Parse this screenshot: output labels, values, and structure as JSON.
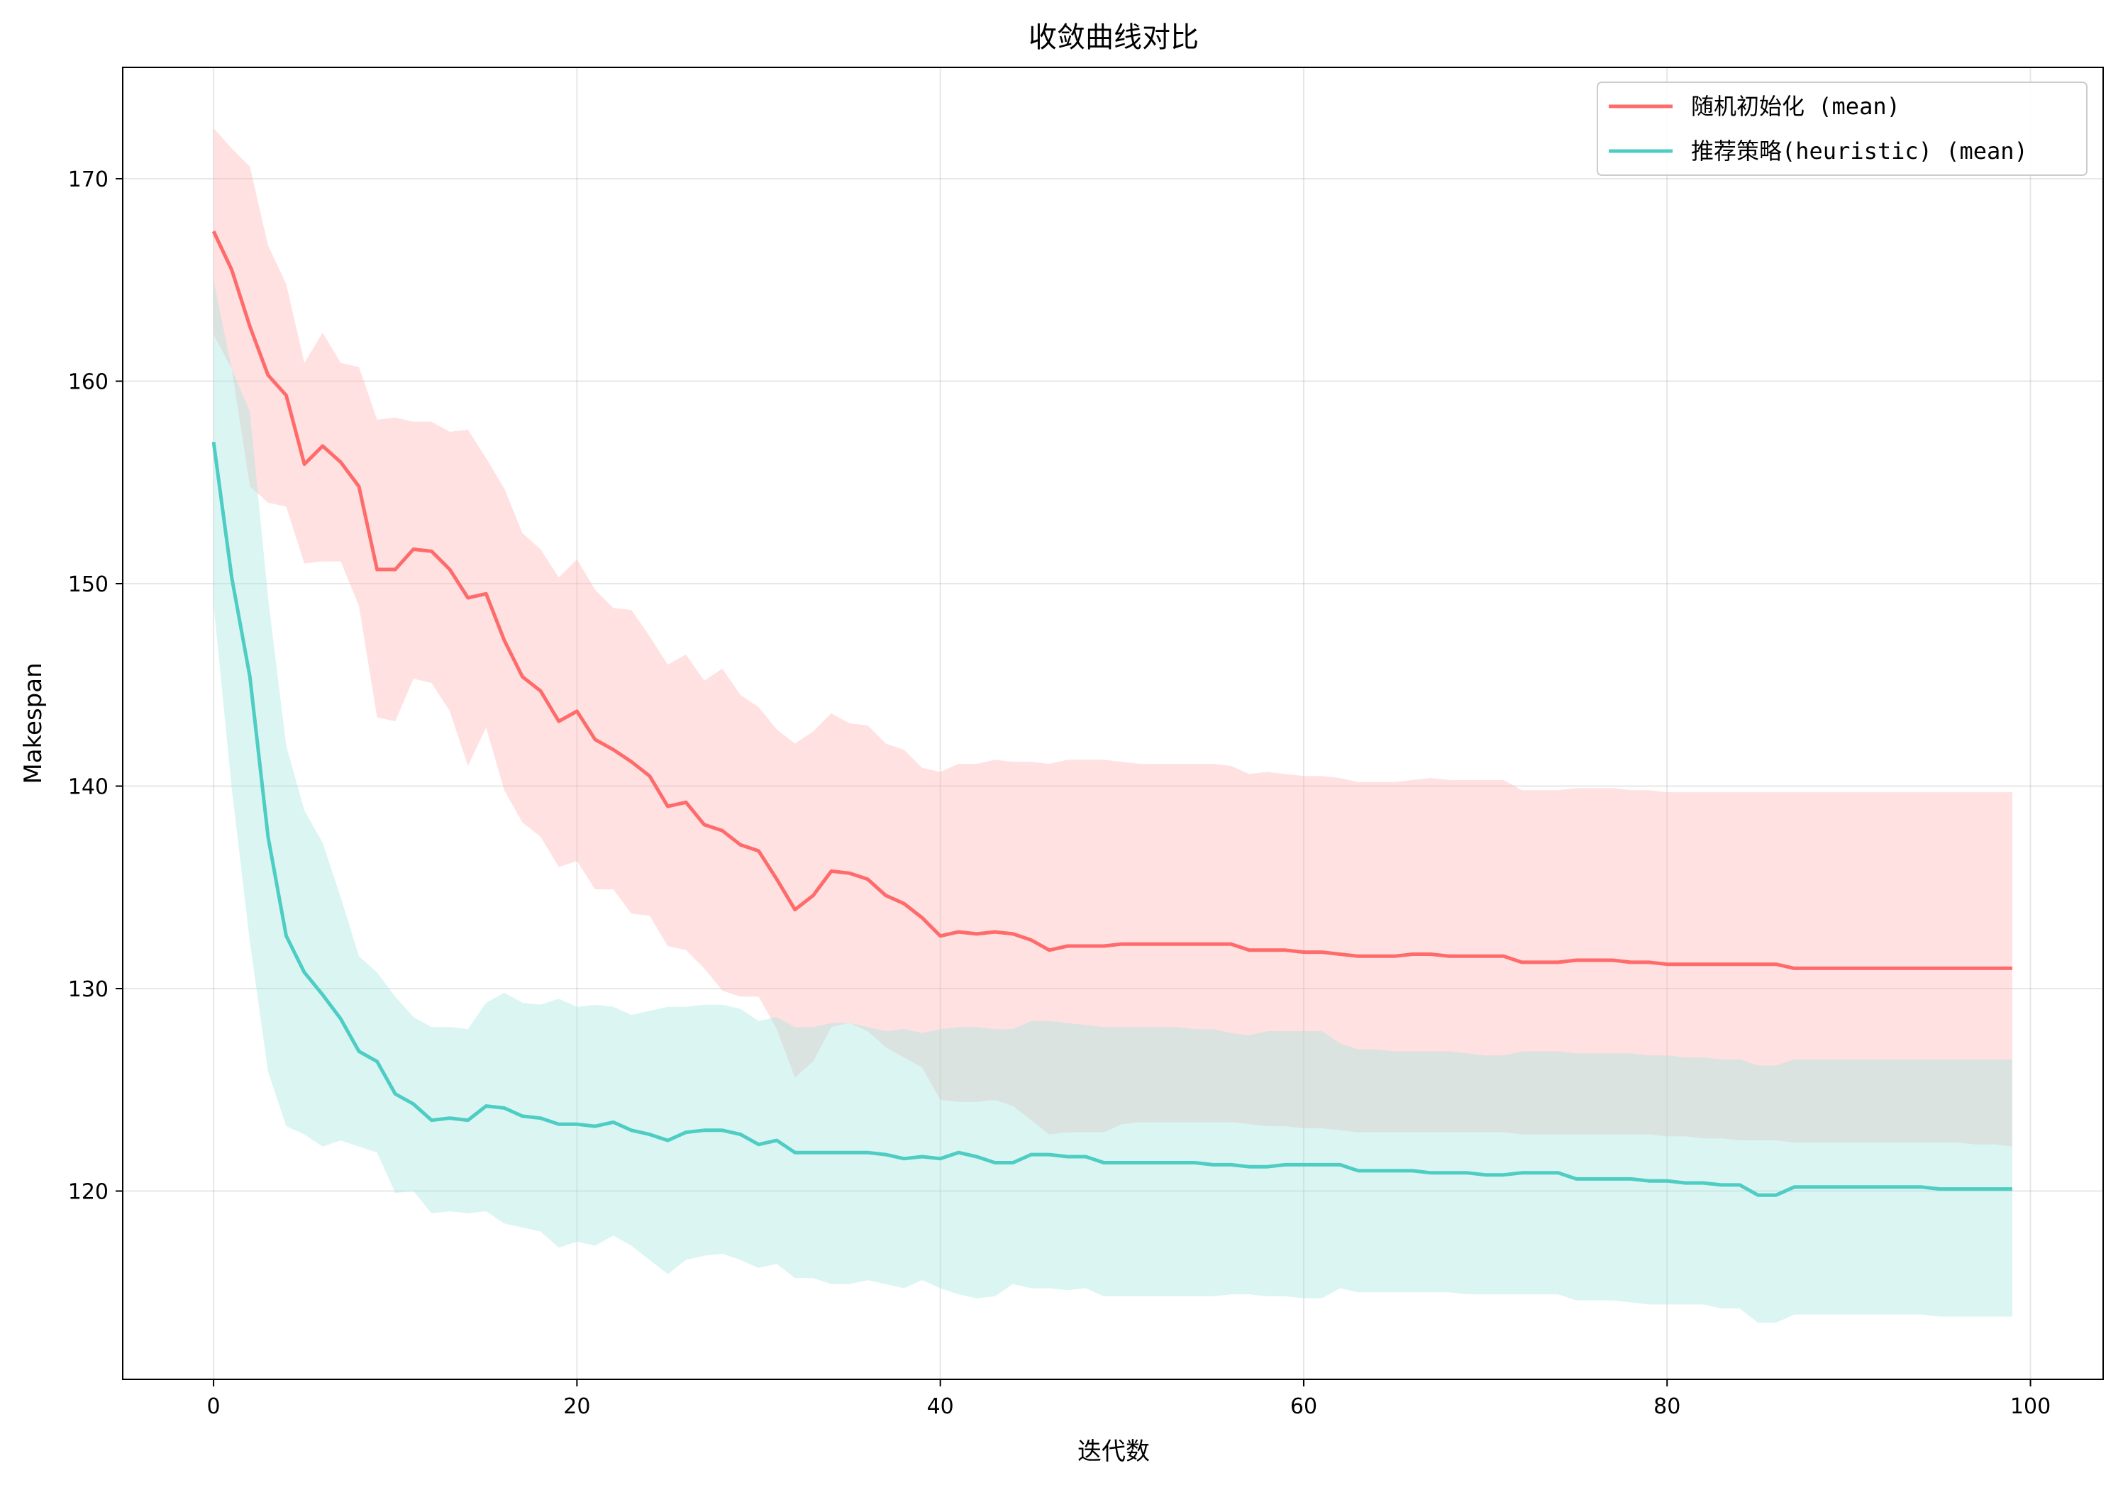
{
  "chart_data": {
    "type": "line",
    "title": "收敛曲线对比",
    "xlabel": "迭代数",
    "ylabel": "Makespan",
    "xlim": [
      -5,
      104
    ],
    "ylim": [
      110.7,
      175.5
    ],
    "xticks": [
      0,
      20,
      40,
      60,
      80,
      100
    ],
    "yticks": [
      120,
      130,
      140,
      150,
      160,
      170
    ],
    "grid": true,
    "legend_position": "top-right",
    "x": [
      0,
      1,
      2,
      3,
      4,
      5,
      6,
      7,
      8,
      9,
      10,
      11,
      12,
      13,
      14,
      15,
      16,
      17,
      18,
      19,
      20,
      21,
      22,
      23,
      24,
      25,
      26,
      27,
      28,
      29,
      30,
      31,
      32,
      33,
      34,
      35,
      36,
      37,
      38,
      39,
      40,
      41,
      42,
      43,
      44,
      45,
      46,
      47,
      48,
      49,
      50,
      51,
      52,
      53,
      54,
      55,
      56,
      57,
      58,
      59,
      60,
      61,
      62,
      63,
      64,
      65,
      66,
      67,
      68,
      69,
      70,
      71,
      72,
      73,
      74,
      75,
      76,
      77,
      78,
      79,
      80,
      81,
      82,
      83,
      84,
      85,
      86,
      87,
      88,
      89,
      90,
      91,
      92,
      93,
      94,
      95,
      96,
      97,
      98,
      99
    ],
    "series": [
      {
        "name": "随机初始化 (mean)",
        "color": "#ff6b6b",
        "band_color": "#ffb3b3",
        "mean": [
          167.4,
          165.5,
          162.7,
          160.3,
          159.3,
          155.9,
          156.8,
          156.0,
          154.8,
          150.7,
          150.7,
          151.7,
          151.6,
          150.7,
          149.3,
          149.5,
          147.2,
          145.4,
          144.7,
          143.2,
          143.7,
          142.3,
          141.8,
          141.2,
          140.5,
          139.0,
          139.2,
          138.1,
          137.8,
          137.1,
          136.8,
          135.4,
          133.9,
          134.6,
          135.8,
          135.7,
          135.4,
          134.6,
          134.2,
          133.5,
          132.6,
          132.8,
          132.7,
          132.8,
          132.7,
          132.4,
          131.9,
          132.1,
          132.1,
          132.1,
          132.2,
          132.2,
          132.2,
          132.2,
          132.2,
          132.2,
          132.2,
          131.9,
          131.9,
          131.9,
          131.8,
          131.8,
          131.7,
          131.6,
          131.6,
          131.6,
          131.7,
          131.7,
          131.6,
          131.6,
          131.6,
          131.6,
          131.3,
          131.3,
          131.3,
          131.4,
          131.4,
          131.4,
          131.3,
          131.3,
          131.2,
          131.2,
          131.2,
          131.2,
          131.2,
          131.2,
          131.2,
          131.0,
          131.0,
          131.0,
          131.0,
          131.0,
          131.0,
          131.0,
          131.0,
          131.0,
          131.0,
          131.0,
          131.0,
          131.0
        ],
        "upper": [
          172.5,
          171.5,
          170.6,
          166.7,
          164.8,
          160.9,
          162.4,
          160.9,
          160.7,
          158.1,
          158.2,
          158.0,
          158.0,
          157.5,
          157.6,
          156.2,
          154.7,
          152.5,
          151.7,
          150.3,
          151.2,
          149.7,
          148.8,
          148.7,
          147.4,
          146.0,
          146.5,
          145.2,
          145.8,
          144.5,
          143.9,
          142.8,
          142.1,
          142.7,
          143.6,
          143.1,
          143.0,
          142.1,
          141.8,
          140.9,
          140.7,
          141.1,
          141.1,
          141.3,
          141.2,
          141.2,
          141.1,
          141.3,
          141.3,
          141.3,
          141.2,
          141.1,
          141.1,
          141.1,
          141.1,
          141.1,
          141.0,
          140.6,
          140.7,
          140.6,
          140.5,
          140.5,
          140.4,
          140.2,
          140.2,
          140.2,
          140.3,
          140.4,
          140.3,
          140.3,
          140.3,
          140.3,
          139.8,
          139.8,
          139.8,
          139.9,
          139.9,
          139.9,
          139.8,
          139.8,
          139.7,
          139.7,
          139.7,
          139.7,
          139.7,
          139.7,
          139.7,
          139.7,
          139.7,
          139.7,
          139.7,
          139.7,
          139.7,
          139.7,
          139.7,
          139.7,
          139.7,
          139.7,
          139.7,
          139.7
        ],
        "lower": [
          162.3,
          160.6,
          154.8,
          154.0,
          153.8,
          151.0,
          151.1,
          151.1,
          148.9,
          143.4,
          143.2,
          145.3,
          145.1,
          143.7,
          141.0,
          142.9,
          139.8,
          138.2,
          137.5,
          136.0,
          136.3,
          134.9,
          134.9,
          133.7,
          133.6,
          132.1,
          131.9,
          131.0,
          129.9,
          129.6,
          129.6,
          128.0,
          125.6,
          126.4,
          128.1,
          128.3,
          127.9,
          127.1,
          126.6,
          126.1,
          124.5,
          124.4,
          124.4,
          124.5,
          124.2,
          123.5,
          122.8,
          122.9,
          122.9,
          122.9,
          123.3,
          123.4,
          123.4,
          123.4,
          123.4,
          123.4,
          123.4,
          123.3,
          123.2,
          123.2,
          123.1,
          123.1,
          123.0,
          122.9,
          122.9,
          122.9,
          122.9,
          122.9,
          122.9,
          122.9,
          122.9,
          122.9,
          122.8,
          122.8,
          122.8,
          122.8,
          122.8,
          122.8,
          122.8,
          122.8,
          122.7,
          122.7,
          122.6,
          122.6,
          122.5,
          122.5,
          122.5,
          122.4,
          122.4,
          122.4,
          122.4,
          122.4,
          122.4,
          122.4,
          122.4,
          122.4,
          122.4,
          122.3,
          122.3,
          122.2
        ]
      },
      {
        "name": "推荐策略(heuristic) (mean)",
        "color": "#4ecdc4",
        "band_color": "#a6e6e1",
        "mean": [
          157.0,
          150.3,
          145.4,
          137.5,
          132.6,
          130.8,
          129.7,
          128.5,
          126.9,
          126.4,
          124.8,
          124.3,
          123.5,
          123.6,
          123.5,
          124.2,
          124.1,
          123.7,
          123.6,
          123.3,
          123.3,
          123.2,
          123.4,
          123.0,
          122.8,
          122.5,
          122.9,
          123.0,
          123.0,
          122.8,
          122.3,
          122.5,
          121.9,
          121.9,
          121.9,
          121.9,
          121.9,
          121.8,
          121.6,
          121.7,
          121.6,
          121.9,
          121.7,
          121.4,
          121.4,
          121.8,
          121.8,
          121.7,
          121.7,
          121.4,
          121.4,
          121.4,
          121.4,
          121.4,
          121.4,
          121.3,
          121.3,
          121.2,
          121.2,
          121.3,
          121.3,
          121.3,
          121.3,
          121.0,
          121.0,
          121.0,
          121.0,
          120.9,
          120.9,
          120.9,
          120.8,
          120.8,
          120.9,
          120.9,
          120.9,
          120.6,
          120.6,
          120.6,
          120.6,
          120.5,
          120.5,
          120.4,
          120.4,
          120.3,
          120.3,
          119.8,
          119.8,
          120.2,
          120.2,
          120.2,
          120.2,
          120.2,
          120.2,
          120.2,
          120.2,
          120.1,
          120.1,
          120.1,
          120.1,
          120.1
        ],
        "upper": [
          165.0,
          160.6,
          158.5,
          149.3,
          142.0,
          138.8,
          137.2,
          134.5,
          131.6,
          130.8,
          129.6,
          128.6,
          128.1,
          128.1,
          128.0,
          129.3,
          129.8,
          129.3,
          129.2,
          129.5,
          129.1,
          129.2,
          129.1,
          128.7,
          128.9,
          129.1,
          129.1,
          129.2,
          129.2,
          129.0,
          128.4,
          128.6,
          128.1,
          128.1,
          128.3,
          128.3,
          128.1,
          127.9,
          128.0,
          127.8,
          128.0,
          128.1,
          128.1,
          128.0,
          128.0,
          128.4,
          128.4,
          128.3,
          128.2,
          128.1,
          128.1,
          128.1,
          128.1,
          128.1,
          128.0,
          128.0,
          127.8,
          127.7,
          127.9,
          127.9,
          127.9,
          127.9,
          127.3,
          127.0,
          127.0,
          126.9,
          126.9,
          126.9,
          126.9,
          126.8,
          126.7,
          126.7,
          126.9,
          126.9,
          126.9,
          126.8,
          126.8,
          126.8,
          126.8,
          126.7,
          126.7,
          126.6,
          126.6,
          126.5,
          126.5,
          126.2,
          126.2,
          126.5,
          126.5,
          126.5,
          126.5,
          126.5,
          126.5,
          126.5,
          126.5,
          126.5,
          126.5,
          126.5,
          126.5,
          126.5
        ],
        "lower": [
          149.0,
          139.9,
          132.3,
          125.9,
          123.2,
          122.8,
          122.2,
          122.5,
          122.2,
          121.9,
          119.9,
          120.0,
          118.9,
          119.0,
          118.9,
          119.0,
          118.4,
          118.2,
          118.0,
          117.2,
          117.5,
          117.3,
          117.8,
          117.3,
          116.6,
          115.9,
          116.6,
          116.8,
          116.9,
          116.6,
          116.2,
          116.4,
          115.7,
          115.7,
          115.4,
          115.4,
          115.6,
          115.4,
          115.2,
          115.6,
          115.2,
          114.9,
          114.7,
          114.8,
          115.4,
          115.2,
          115.2,
          115.1,
          115.2,
          114.8,
          114.8,
          114.8,
          114.8,
          114.8,
          114.8,
          114.8,
          114.9,
          114.9,
          114.8,
          114.8,
          114.7,
          114.7,
          115.2,
          115.0,
          115.0,
          115.0,
          115.0,
          115.0,
          115.0,
          114.9,
          114.9,
          114.9,
          114.9,
          114.9,
          114.9,
          114.6,
          114.6,
          114.6,
          114.5,
          114.4,
          114.4,
          114.4,
          114.4,
          114.2,
          114.2,
          113.5,
          113.5,
          113.9,
          113.9,
          113.9,
          113.9,
          113.9,
          113.9,
          113.9,
          113.9,
          113.8,
          113.8,
          113.8,
          113.8,
          113.8
        ]
      }
    ]
  }
}
